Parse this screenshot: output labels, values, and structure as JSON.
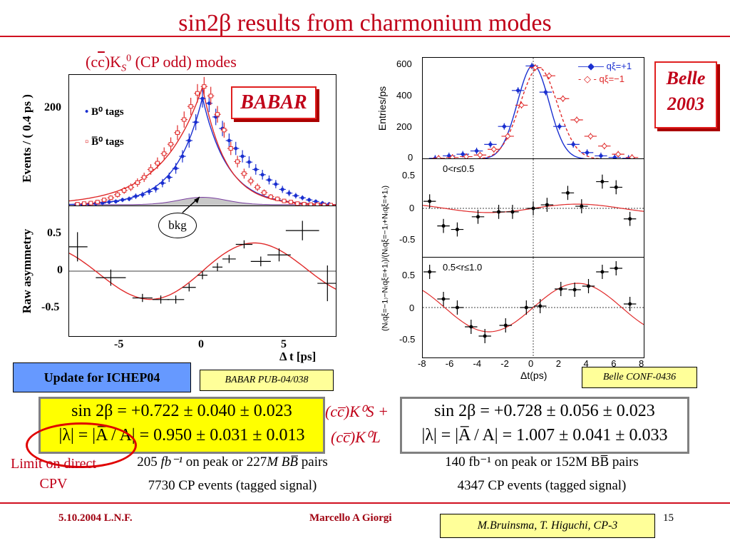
{
  "title": "sin2β results from charmonium modes",
  "babar": {
    "mode_label_prefix": "(c",
    "mode_label_cbar": "c",
    "mode_label_k": ")K",
    "mode_label_s": "S",
    "mode_label_0": "0",
    "mode_label_suffix": "(CP odd) modes",
    "logo": "BABAR",
    "y_label_top": "Events / ( 0.4 ps )",
    "y_label_bottom": "Raw asymmetry",
    "x_label": "Δ t [ps]",
    "legend_b0": "B⁰ tags",
    "legend_b0bar": "B̅⁰ tags",
    "bkg_label": "bkg",
    "top_ticks": [
      "200"
    ],
    "bottom_ticks": [
      "0.5",
      "0",
      "-0.5"
    ],
    "x_ticks": [
      "-5",
      "0",
      "5"
    ],
    "update_label": "Update for ICHEP04",
    "pub_ref": "BABAR PUB-04/038",
    "result_line1": "sin 2β = +0.722 ± 0.040 ± 0.023",
    "result_line2": "|λ| = |A̅ / A| = 0.950 ± 0.031 ± 0.013",
    "lumi_line_num": "205",
    "lumi_line_unit": "fb⁻¹",
    "lumi_line_rest": "on peak or",
    "lumi_line_m": "227",
    "lumi_line_m_unit": "M  BB̅",
    "lumi_line_pairs": "pairs",
    "events_line": "7730 CP events (tagged signal)",
    "limit_label": "Limit on direct CPV"
  },
  "belle": {
    "logo_line1": "Belle",
    "logo_line2": "2003",
    "legend_plus": "qξ=+1",
    "legend_minus": "qξ=−1",
    "y_label_top": "Entries/ps",
    "y_label_bottom": "(N₍qξ=−1₎−N₍qξ=+1₎)/(N₍qξ=−1₎+N₍qξ=+1₎)",
    "x_label": "Δt(ps)",
    "top_ticks": [
      "600",
      "400",
      "200",
      "0"
    ],
    "mid_ticks": [
      "0.5",
      "0",
      "-0.5"
    ],
    "bottom_ticks": [
      "0.5",
      "0",
      "-0.5"
    ],
    "x_ticks": [
      "-8",
      "-6",
      "-4",
      "-2",
      "0",
      "2",
      "4",
      "6",
      "8"
    ],
    "panel1_label": "0<r≤0.5",
    "panel2_label": "0.5<r≤1.0",
    "conf_ref": "Belle CONF-0436",
    "mode_ks": "(cc̅)K⁰S +",
    "mode_kl": "(cc̅)K⁰L",
    "result_line1": "sin 2β = +0.728 ± 0.056 ± 0.023",
    "result_line2": "|λ| = |A̅ / A| = 1.007 ± 0.041 ± 0.033",
    "lumi_line": "140 fb⁻¹ on peak or 152M  BB̅ pairs",
    "events_line": "4347 CP events (tagged signal)"
  },
  "footer": {
    "date": "5.10.2004 L.N.F.",
    "author": "Marcello A Giorgi",
    "page": "15",
    "credit": "M.Bruinsma, T. Higuchi, CP-3"
  },
  "colors": {
    "title_red": "#c00018",
    "blue": "#1a2fd0",
    "red": "#e02a2a"
  },
  "chart_data": [
    {
      "type": "line",
      "title": "",
      "xlabel": "Δ t [ps]",
      "ylabel": "Events / ( 0.4 ps )",
      "xlim": [
        -8,
        8
      ],
      "ylim": [
        0,
        250
      ],
      "series": [
        {
          "name": "B⁰ tags",
          "x": [
            -7.6,
            -7.2,
            -6.8,
            -6.4,
            -6,
            -5.6,
            -5.2,
            -4.8,
            -4.4,
            -4,
            -3.6,
            -3.2,
            -2.8,
            -2.4,
            -2,
            -1.6,
            -1.2,
            -0.8,
            -0.4,
            0,
            0.4,
            0.8,
            1.2,
            1.6,
            2,
            2.4,
            2.8,
            3.2,
            3.6,
            4,
            4.4,
            4.8,
            5.2,
            5.6,
            6,
            6.4,
            6.8,
            7.2,
            7.6
          ],
          "y": [
            3,
            3,
            4,
            5,
            6,
            8,
            9,
            12,
            14,
            19,
            22,
            28,
            33,
            44,
            55,
            72,
            95,
            125,
            160,
            205,
            196,
            170,
            148,
            125,
            110,
            95,
            84,
            70,
            60,
            50,
            42,
            32,
            25,
            20,
            16,
            12,
            9,
            6,
            4
          ]
        },
        {
          "name": "B̅⁰ tags",
          "x": [
            -7.6,
            -7.2,
            -6.8,
            -6.4,
            -6,
            -5.6,
            -5.2,
            -4.8,
            -4.4,
            -4,
            -3.6,
            -3.2,
            -2.8,
            -2.4,
            -2,
            -1.6,
            -1.2,
            -0.8,
            -0.4,
            0,
            0.4,
            0.8,
            1.2,
            1.6,
            2,
            2.4,
            2.8,
            3.2,
            3.6,
            4,
            4.4,
            4.8,
            5.2,
            5.6,
            6,
            6.4,
            6.8,
            7.2,
            7.6
          ],
          "y": [
            4,
            5,
            6,
            8,
            12,
            16,
            22,
            30,
            36,
            45,
            55,
            70,
            82,
            100,
            118,
            140,
            165,
            190,
            215,
            228,
            210,
            175,
            145,
            110,
            85,
            62,
            48,
            36,
            26,
            18,
            14,
            10,
            8,
            5,
            4,
            3,
            3,
            2,
            2
          ]
        }
      ]
    },
    {
      "type": "scatter",
      "title": "",
      "xlabel": "Δ t [ps]",
      "ylabel": "Raw asymmetry",
      "xlim": [
        -8,
        8
      ],
      "ylim": [
        -0.8,
        0.8
      ],
      "x": [
        -7.5,
        -5.5,
        -3.6,
        -2.5,
        -1.6,
        -0.8,
        0,
        0.9,
        1.6,
        2.5,
        3.5,
        4.6,
        6.0,
        7.5
      ],
      "y": [
        0.3,
        -0.08,
        -0.33,
        -0.35,
        -0.35,
        -0.2,
        -0.05,
        0.05,
        0.15,
        0.33,
        0.12,
        0.2,
        0.5,
        -0.15
      ]
    },
    {
      "type": "line",
      "title": "",
      "xlabel": "Δt(ps)",
      "ylabel": "Entries/ps",
      "xlim": [
        -8,
        8
      ],
      "ylim": [
        0,
        620
      ],
      "series": [
        {
          "name": "qξ=+1",
          "x": [
            -7,
            -6,
            -5,
            -4,
            -3,
            -2,
            -1,
            0,
            1,
            2,
            3,
            4,
            5,
            6,
            7
          ],
          "y": [
            5,
            20,
            30,
            50,
            90,
            200,
            420,
            570,
            410,
            200,
            90,
            40,
            20,
            10,
            5
          ]
        },
        {
          "name": "qξ=−1",
          "x": [
            -7,
            -6,
            -5,
            -4,
            -3,
            -2,
            -1,
            0,
            1,
            2,
            3,
            4,
            5,
            6,
            7
          ],
          "y": [
            5,
            10,
            15,
            25,
            60,
            140,
            330,
            560,
            510,
            370,
            240,
            140,
            80,
            30,
            10
          ]
        }
      ]
    },
    {
      "type": "scatter",
      "title": "",
      "xlabel": "Δt(ps)",
      "ylabel": "",
      "xlim": [
        -8,
        8
      ],
      "ylim": [
        -0.7,
        0.7
      ],
      "annotation": "0<r≤0.5",
      "x": [
        -7.5,
        -6.5,
        -5.5,
        -4,
        -2.5,
        -1.5,
        0,
        1,
        2.5,
        3.5,
        5,
        6,
        7
      ],
      "y": [
        0.1,
        -0.25,
        -0.3,
        -0.12,
        -0.05,
        -0.05,
        0.0,
        0.05,
        0.22,
        0.03,
        0.38,
        0.3,
        -0.15
      ]
    },
    {
      "type": "scatter",
      "title": "",
      "xlabel": "Δt(ps)",
      "ylabel": "",
      "xlim": [
        -8,
        8
      ],
      "ylim": [
        -0.7,
        0.7
      ],
      "annotation": "0.5<r≤1.0",
      "x": [
        -7.5,
        -6.5,
        -5.5,
        -4.5,
        -3.5,
        -2,
        -0.5,
        0.5,
        2,
        3,
        4,
        5,
        6,
        7
      ],
      "y": [
        0.5,
        0.12,
        0.0,
        -0.27,
        -0.4,
        -0.25,
        0.0,
        0.02,
        0.26,
        0.25,
        0.3,
        0.5,
        0.55,
        0.05
      ]
    }
  ]
}
